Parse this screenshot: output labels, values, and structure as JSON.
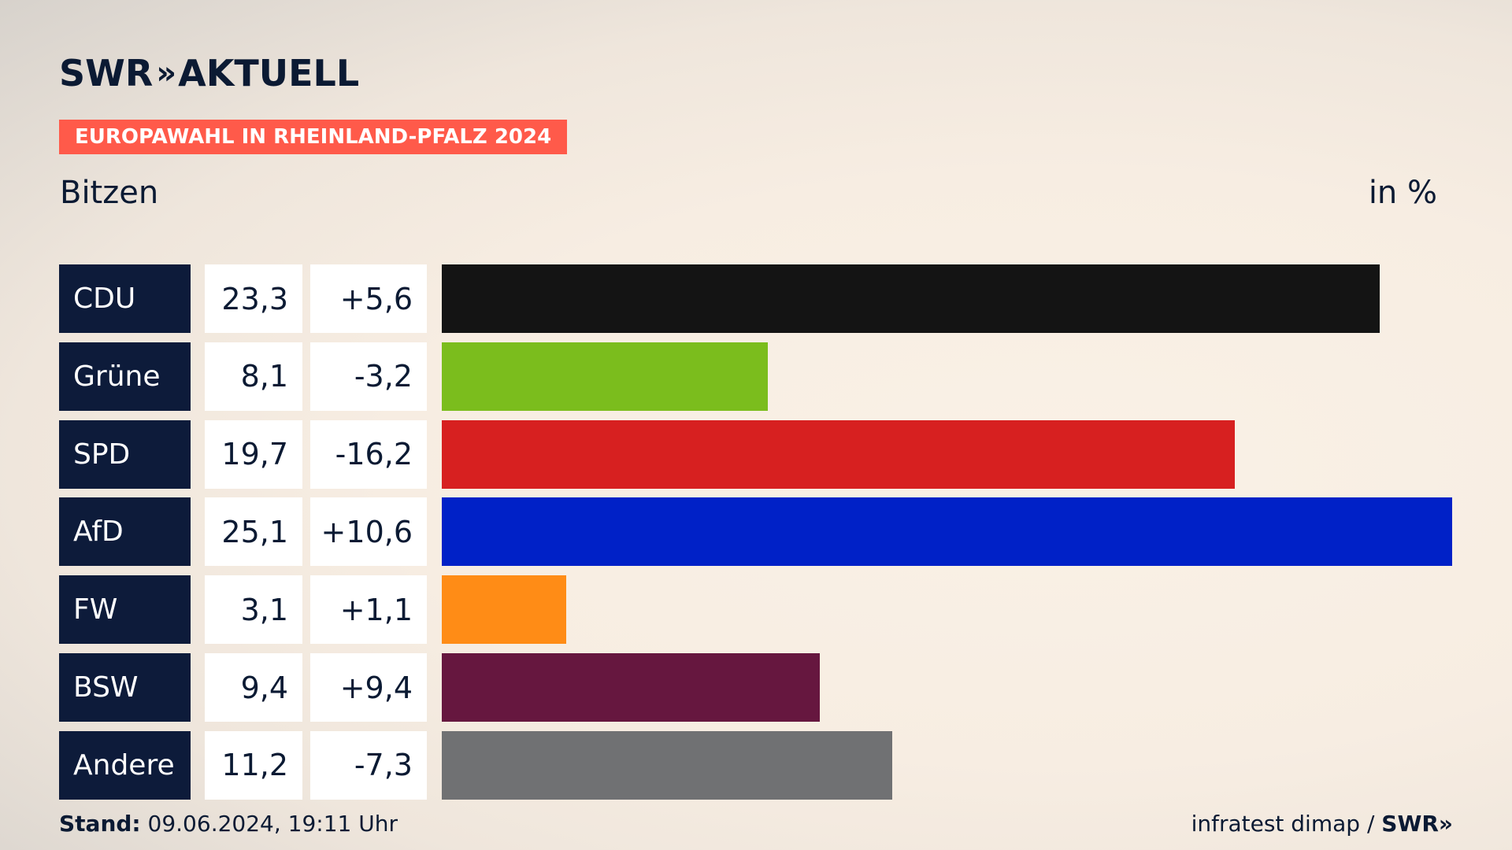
{
  "header": {
    "logo_swr": "SWR",
    "logo_chevrons": "»",
    "logo_aktuell": "AKTUELL",
    "banner": "EUROPAWAHL IN RHEINLAND-PFALZ 2024",
    "subtitle": "Bitzen",
    "unit": "in %"
  },
  "colors": {
    "banner": "#ff5a4a",
    "label_bg": "#0d1b3a"
  },
  "chart_data": {
    "type": "bar",
    "title": "EUROPAWAHL IN RHEINLAND-PFALZ 2024",
    "subtitle": "Bitzen",
    "ylabel": "in %",
    "categories": [
      "CDU",
      "Grüne",
      "SPD",
      "AfD",
      "FW",
      "BSW",
      "Andere"
    ],
    "values": [
      23.3,
      8.1,
      19.7,
      25.1,
      3.1,
      9.4,
      11.2
    ],
    "value_labels": [
      "23,3",
      "8,1",
      "19,7",
      "25,1",
      "3,1",
      "9,4",
      "11,2"
    ],
    "diff_labels": [
      "+5,6",
      "-3,2",
      "-16,2",
      "+10,6",
      "+1,1",
      "+9,4",
      "-7,3"
    ],
    "bar_colors": [
      "#141414",
      "#7bbd1d",
      "#d72020",
      "#0021c7",
      "#ff8c16",
      "#66173f",
      "#707173"
    ],
    "xlim": [
      0,
      25.1
    ]
  },
  "footer": {
    "stand_label": "Stand:",
    "stand_value": "09.06.2024, 19:11 Uhr",
    "source": "infratest dimap /",
    "source_logo": "SWR»"
  }
}
